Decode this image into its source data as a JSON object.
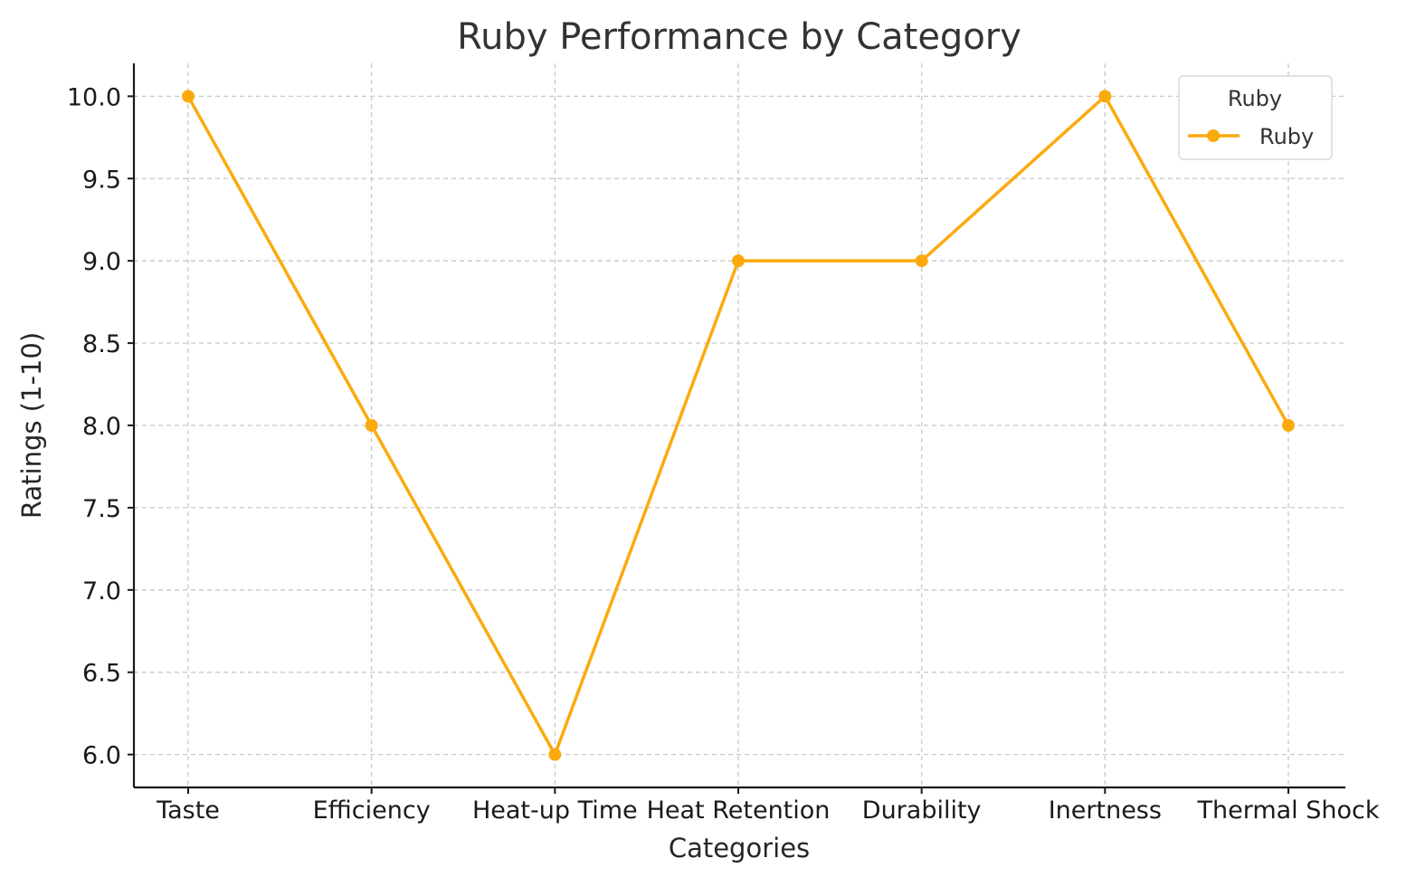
{
  "chart_data": {
    "type": "line",
    "title": "Ruby Performance by Category",
    "xlabel": "Categories",
    "ylabel": "Ratings (1-10)",
    "categories": [
      "Taste",
      "Efficiency",
      "Heat-up Time",
      "Heat Retention",
      "Durability",
      "Inertness",
      "Thermal Shock"
    ],
    "series": [
      {
        "name": "Ruby",
        "values": [
          10,
          8,
          6,
          9,
          9,
          10,
          8
        ],
        "color": "#FBAA0E"
      }
    ],
    "ylim": [
      5.8,
      10.2
    ],
    "yticks": [
      "6.0",
      "6.5",
      "7.0",
      "7.5",
      "8.0",
      "8.5",
      "9.0",
      "9.5",
      "10.0"
    ],
    "grid": true,
    "legend": {
      "title": "Ruby",
      "placement": "top-right"
    }
  }
}
